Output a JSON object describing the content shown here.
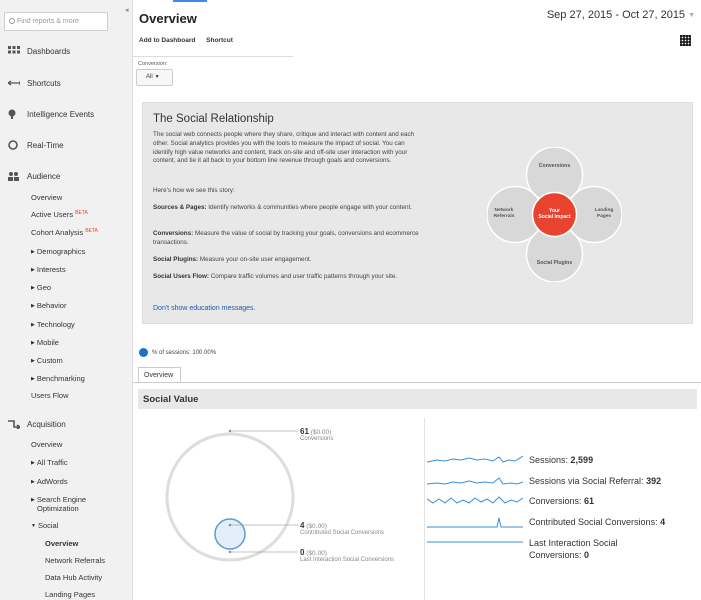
{
  "sidebar": {
    "search_placeholder": "Find reports & more",
    "nav": [
      {
        "label": "Dashboards",
        "icon": "grid-icon"
      },
      {
        "label": "Shortcuts",
        "icon": "arrow-icon"
      },
      {
        "label": "Intelligence Events",
        "icon": "lightbulb-icon"
      },
      {
        "label": "Real-Time",
        "icon": "clock-icon"
      },
      {
        "label": "Audience",
        "icon": "people-icon"
      },
      {
        "label": "Acquisition",
        "icon": "acquisition-icon"
      }
    ],
    "audience": {
      "overview": "Overview",
      "active_users": "Active Users",
      "active_users_badge": "BETA",
      "cohort": "Cohort Analysis",
      "cohort_badge": "BETA",
      "demographics": "Demographics",
      "interests": "Interests",
      "geo": "Geo",
      "behavior": "Behavior",
      "technology": "Technology",
      "mobile": "Mobile",
      "custom": "Custom",
      "benchmarking": "Benchmarking",
      "users_flow": "Users Flow"
    },
    "acquisition": {
      "overview": "Overview",
      "all_traffic": "All Traffic",
      "adwords": "AdWords",
      "seo_1": "Search Engine",
      "seo_2": "Optimization",
      "social": "Social",
      "social_overview": "Overview",
      "network_referrals": "Network Referrals",
      "data_hub": "Data Hub Activity",
      "landing_pages": "Landing Pages"
    }
  },
  "header": {
    "title": "Overview",
    "date_range": "Sep 27, 2015 - Oct 27, 2015",
    "add_to_dashboard": "Add to Dashboard",
    "shortcut": "Shortcut",
    "conversion_label": "Conversion:",
    "conversion_value": "All"
  },
  "education": {
    "title": "The Social Relationship",
    "intro": "The social web connects people where they share, critique and interact with content and each other. Social analytics provides you with the tools to measure the impact of social. You can identify high value networks and content, track on-site and off-site user interaction with your content, and tie it all back to your bottom line revenue through goals and conversions.",
    "story": "Here's how we see this story:",
    "items": [
      {
        "label": "Sources & Pages:",
        "text": "Identify networks & communities where people engage with your content."
      },
      {
        "label": "Conversions:",
        "text": "Measure the value of social by tracking your goals, conversions and ecommerce transactions."
      },
      {
        "label": "Social Plugins:",
        "text": "Measure your on-site user engagement."
      },
      {
        "label": "Social Users Flow:",
        "text": "Compare traffic volumes and user traffic patterns through your site."
      }
    ],
    "dismiss": "Don't show education messages.",
    "venn": {
      "top": "Conversions",
      "left_1": "Network",
      "left_2": "Referrals",
      "right_1": "Landing",
      "right_2": "Pages",
      "bottom": "Social Plugins",
      "center_1": "Your",
      "center_2": "Social Impact"
    }
  },
  "sessions_pct": "% of sessions: 100.00%",
  "tab_overview": "Overview",
  "social_value": {
    "title": "Social Value",
    "bubbles": [
      {
        "count": "61",
        "value": "($0.00)",
        "caption": "Conversions"
      },
      {
        "count": "4",
        "value": "($0.00)",
        "caption": "Contributed Social Conversions"
      },
      {
        "count": "0",
        "value": "($0.00)",
        "caption": "Last Interaction Social Conversions"
      }
    ],
    "metrics": [
      {
        "label": "Sessions:",
        "value": "2,599"
      },
      {
        "label": "Sessions via Social Referral:",
        "value": "392"
      },
      {
        "label": "Conversions:",
        "value": "61"
      },
      {
        "label": "Contributed Social Conversions:",
        "value": "4"
      },
      {
        "label_1": "Last Interaction Social",
        "label_2": "Conversions:",
        "value": "0"
      }
    ]
  },
  "colors": {
    "accent": "#4285f4",
    "venn_center": "#e8432e",
    "spark": "#3a8fd6",
    "link": "#1a5aa8"
  }
}
